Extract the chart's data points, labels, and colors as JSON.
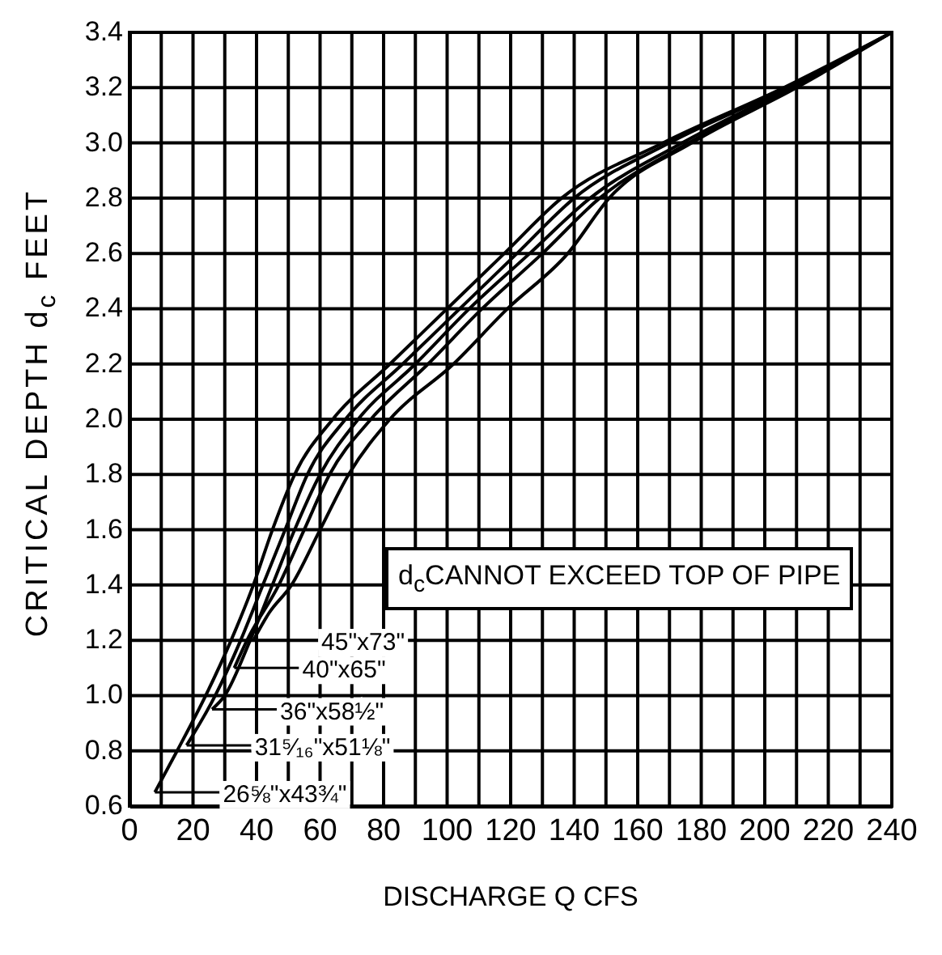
{
  "chart_data": {
    "type": "line",
    "xlabel": "DISCHARGE Q CFS",
    "ylabel": "CRITICAL DEPTH d$_{c}$ FEET",
    "xlim": [
      0,
      240
    ],
    "ylim": [
      0.6,
      3.4
    ],
    "xticks": [
      0,
      {
        "value": 10,
        "label": null
      },
      20,
      {
        "value": 30,
        "label": null
      },
      40,
      {
        "value": 50,
        "label": null
      },
      60,
      {
        "value": 70,
        "label": null
      },
      80,
      {
        "value": 90,
        "label": null
      },
      100,
      {
        "value": 110,
        "label": null
      },
      120,
      {
        "value": 130,
        "label": null
      },
      140,
      {
        "value": 150,
        "label": null
      },
      160,
      {
        "value": 170,
        "label": null
      },
      180,
      {
        "value": 190,
        "label": null
      },
      200,
      {
        "value": 210,
        "label": null
      },
      220,
      {
        "value": 230,
        "label": null
      },
      240
    ],
    "yticks": [
      {
        "value": 0.6,
        "label": "0.6"
      },
      {
        "value": 0.8,
        "label": "0.8"
      },
      {
        "value": 1.0,
        "label": "1.0"
      },
      {
        "value": 1.2,
        "label": "1.2"
      },
      {
        "value": 1.4,
        "label": "1.4"
      },
      {
        "value": 1.6,
        "label": "1.6"
      },
      {
        "value": 1.8,
        "label": "1.8"
      },
      {
        "value": 2.0,
        "label": "2.0"
      },
      {
        "value": 2.2,
        "label": "2.2"
      },
      {
        "value": 2.4,
        "label": "2.4"
      },
      {
        "value": 2.6,
        "label": "2.6"
      },
      {
        "value": 2.8,
        "label": "2.8"
      },
      {
        "value": 3.0,
        "label": "3.0"
      },
      {
        "value": 3.2,
        "label": "3.2"
      },
      {
        "value": 3.4,
        "label": "3.4"
      }
    ],
    "grid": true,
    "legend": "bottom left",
    "marker": "none",
    "line_style": "solid",
    "annotations": [
      "d$_{c}$CANNOT EXCEED TOP OF PIPE"
    ],
    "series": [
      {
        "name": "26⅝\"x43¾\"",
        "color": "#000000",
        "x": [
          8,
          15,
          24,
          32,
          39,
          45,
          52,
          64,
          82,
          100,
          118,
          136,
          168,
          206,
          240
        ],
        "values": [
          0.65,
          0.8,
          1.0,
          1.2,
          1.4,
          1.6,
          1.8,
          2.0,
          2.2,
          2.4,
          2.6,
          2.8,
          3.0,
          3.2,
          3.4
        ]
      },
      {
        "name": "31⁵⁄₁₆\"x51⅛\"",
        "color": "#000000",
        "x": [
          18,
          27,
          35,
          42,
          49,
          56,
          68,
          86,
          104,
          122,
          140,
          170,
          207,
          240
        ],
        "values": [
          0.82,
          1.0,
          1.2,
          1.4,
          1.6,
          1.8,
          2.0,
          2.2,
          2.4,
          2.6,
          2.8,
          3.0,
          3.2,
          3.4
        ]
      },
      {
        "name": "36\"x58½\"",
        "color": "#000000",
        "x": [
          26,
          30,
          38,
          45,
          52,
          60,
          72,
          90,
          107,
          126,
          145,
          174,
          208,
          240
        ],
        "values": [
          0.95,
          1.0,
          1.2,
          1.4,
          1.6,
          1.8,
          2.0,
          2.2,
          2.4,
          2.6,
          2.8,
          3.0,
          3.2,
          3.4
        ]
      },
      {
        "name": "40\"x65\"",
        "color": "#000000",
        "x": [
          33,
          37,
          47,
          55,
          63,
          76,
          94,
          111,
          130,
          148,
          176,
          209,
          240
        ],
        "values": [
          1.1,
          1.2,
          1.4,
          1.6,
          1.8,
          2.0,
          2.2,
          2.4,
          2.6,
          2.8,
          3.0,
          3.2,
          3.4
        ]
      },
      {
        "name": "45\"x73\"",
        "color": "#000000",
        "x": [
          39,
          44,
          51,
          60,
          69,
          82,
          102,
          119,
          138,
          151,
          177,
          210,
          240
        ],
        "values": [
          1.2,
          1.3,
          1.4,
          1.6,
          1.8,
          2.0,
          2.2,
          2.4,
          2.6,
          2.8,
          3.0,
          3.2,
          3.4
        ]
      }
    ]
  }
}
